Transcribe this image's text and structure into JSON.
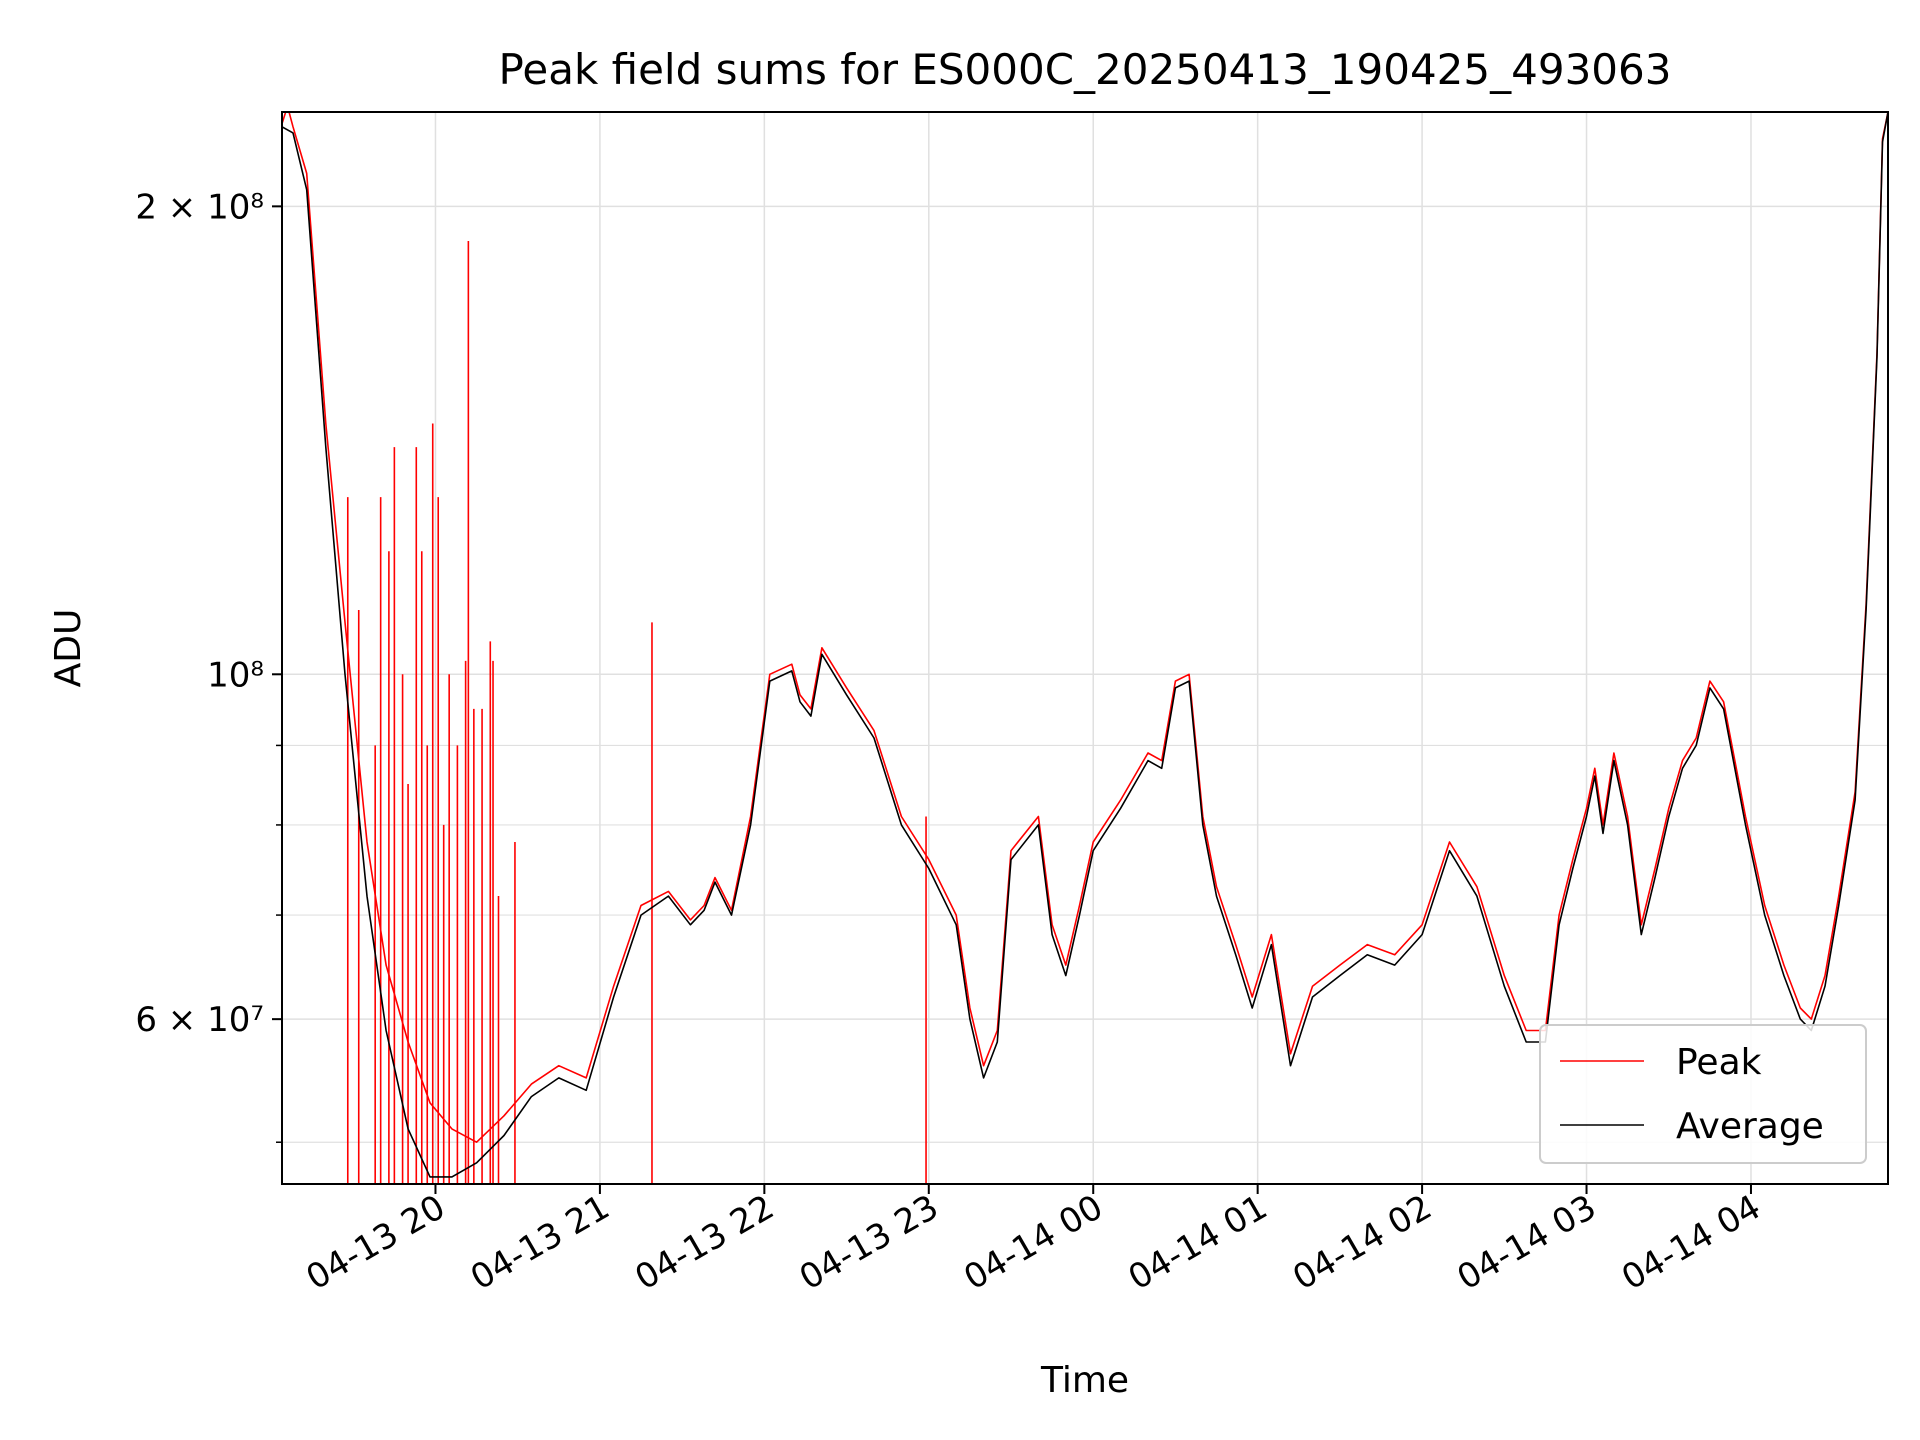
{
  "chart_data": {
    "type": "line",
    "title": "Peak field sums for ES000C_20250413_190425_493063",
    "xlabel": "Time",
    "ylabel": "ADU",
    "yscale": "log",
    "grid": true,
    "legend_position": "lower-right",
    "xlim": [
      "2025-04-13 19:04",
      "2025-04-14 04:50"
    ],
    "ylim": [
      47000000,
      230000000
    ],
    "x_ticks": [
      {
        "t": "2025-04-13 20:00",
        "label": "04-13 20"
      },
      {
        "t": "2025-04-13 21:00",
        "label": "04-13 21"
      },
      {
        "t": "2025-04-13 22:00",
        "label": "04-13 22"
      },
      {
        "t": "2025-04-13 23:00",
        "label": "04-13 23"
      },
      {
        "t": "2025-04-14 00:00",
        "label": "04-14 00"
      },
      {
        "t": "2025-04-14 01:00",
        "label": "04-14 01"
      },
      {
        "t": "2025-04-14 02:00",
        "label": "04-14 02"
      },
      {
        "t": "2025-04-14 03:00",
        "label": "04-14 03"
      },
      {
        "t": "2025-04-14 04:00",
        "label": "04-14 04"
      }
    ],
    "y_major_ticks": [
      {
        "value": 60000000,
        "label": "6 × 10⁷"
      },
      {
        "value": 100000000,
        "label": "10⁸"
      },
      {
        "value": 200000000,
        "label": "2 × 10⁸"
      }
    ],
    "y_minor_ticks": [
      50000000,
      70000000,
      80000000,
      90000000
    ],
    "series": [
      {
        "name": "Average",
        "color": "#000000",
        "points": [
          [
            "2025-04-13 19:04",
            225000000
          ],
          [
            "2025-04-13 19:08",
            223000000
          ],
          [
            "2025-04-13 19:13",
            205000000
          ],
          [
            "2025-04-13 19:20",
            140000000
          ],
          [
            "2025-04-13 19:27",
            100000000
          ],
          [
            "2025-04-13 19:35",
            72000000
          ],
          [
            "2025-04-13 19:42",
            59000000
          ],
          [
            "2025-04-13 19:50",
            51000000
          ],
          [
            "2025-04-13 19:58",
            47500000
          ],
          [
            "2025-04-13 20:06",
            47500000
          ],
          [
            "2025-04-13 20:15",
            48500000
          ],
          [
            "2025-04-13 20:25",
            50500000
          ],
          [
            "2025-04-13 20:35",
            53500000
          ],
          [
            "2025-04-13 20:45",
            55000000
          ],
          [
            "2025-04-13 20:55",
            54000000
          ],
          [
            "2025-04-13 21:05",
            62000000
          ],
          [
            "2025-04-13 21:15",
            70000000
          ],
          [
            "2025-04-13 21:25",
            72000000
          ],
          [
            "2025-04-13 21:33",
            69000000
          ],
          [
            "2025-04-13 21:38",
            70500000
          ],
          [
            "2025-04-13 21:42",
            73500000
          ],
          [
            "2025-04-13 21:48",
            70000000
          ],
          [
            "2025-04-13 21:55",
            80000000
          ],
          [
            "2025-04-13 22:02",
            99000000
          ],
          [
            "2025-04-13 22:10",
            100500000
          ],
          [
            "2025-04-13 22:13",
            96000000
          ],
          [
            "2025-04-13 22:17",
            94000000
          ],
          [
            "2025-04-13 22:21",
            103000000
          ],
          [
            "2025-04-13 22:30",
            97000000
          ],
          [
            "2025-04-13 22:40",
            91000000
          ],
          [
            "2025-04-13 22:50",
            80000000
          ],
          [
            "2025-04-13 23:00",
            75000000
          ],
          [
            "2025-04-13 23:10",
            69000000
          ],
          [
            "2025-04-13 23:15",
            60000000
          ],
          [
            "2025-04-13 23:20",
            55000000
          ],
          [
            "2025-04-13 23:25",
            58000000
          ],
          [
            "2025-04-13 23:30",
            76000000
          ],
          [
            "2025-04-13 23:40",
            80000000
          ],
          [
            "2025-04-13 23:45",
            68000000
          ],
          [
            "2025-04-13 23:50",
            64000000
          ],
          [
            "2025-04-13 23:55",
            70000000
          ],
          [
            "2025-04-14 00:00",
            77000000
          ],
          [
            "2025-04-14 00:10",
            82000000
          ],
          [
            "2025-04-14 00:20",
            88000000
          ],
          [
            "2025-04-14 00:25",
            87000000
          ],
          [
            "2025-04-14 00:30",
            98000000
          ],
          [
            "2025-04-14 00:35",
            99000000
          ],
          [
            "2025-04-14 00:40",
            80000000
          ],
          [
            "2025-04-14 00:45",
            72000000
          ],
          [
            "2025-04-14 00:52",
            66000000
          ],
          [
            "2025-04-14 00:58",
            61000000
          ],
          [
            "2025-04-14 01:05",
            67000000
          ],
          [
            "2025-04-14 01:12",
            56000000
          ],
          [
            "2025-04-14 01:20",
            62000000
          ],
          [
            "2025-04-14 01:30",
            64000000
          ],
          [
            "2025-04-14 01:40",
            66000000
          ],
          [
            "2025-04-14 01:50",
            65000000
          ],
          [
            "2025-04-14 02:00",
            68000000
          ],
          [
            "2025-04-14 02:10",
            77000000
          ],
          [
            "2025-04-14 02:20",
            72000000
          ],
          [
            "2025-04-14 02:30",
            63000000
          ],
          [
            "2025-04-14 02:38",
            58000000
          ],
          [
            "2025-04-14 02:45",
            58000000
          ],
          [
            "2025-04-14 02:50",
            69000000
          ],
          [
            "2025-04-14 02:55",
            75000000
          ],
          [
            "2025-04-14 03:00",
            81000000
          ],
          [
            "2025-04-14 03:03",
            86000000
          ],
          [
            "2025-04-14 03:06",
            79000000
          ],
          [
            "2025-04-14 03:10",
            88000000
          ],
          [
            "2025-04-14 03:15",
            80000000
          ],
          [
            "2025-04-14 03:20",
            68000000
          ],
          [
            "2025-04-14 03:25",
            74000000
          ],
          [
            "2025-04-14 03:30",
            81000000
          ],
          [
            "2025-04-14 03:35",
            87000000
          ],
          [
            "2025-04-14 03:40",
            90000000
          ],
          [
            "2025-04-14 03:45",
            98000000
          ],
          [
            "2025-04-14 03:50",
            95000000
          ],
          [
            "2025-04-14 03:58",
            80000000
          ],
          [
            "2025-04-14 04:05",
            70000000
          ],
          [
            "2025-04-14 04:12",
            64000000
          ],
          [
            "2025-04-14 04:18",
            60000000
          ],
          [
            "2025-04-14 04:22",
            59000000
          ],
          [
            "2025-04-14 04:27",
            63000000
          ],
          [
            "2025-04-14 04:32",
            71000000
          ],
          [
            "2025-04-14 04:38",
            83000000
          ],
          [
            "2025-04-14 04:42",
            110000000
          ],
          [
            "2025-04-14 04:46",
            160000000
          ],
          [
            "2025-04-14 04:48",
            220000000
          ],
          [
            "2025-04-14 04:50",
            230000000
          ]
        ]
      },
      {
        "name": "Peak",
        "color": "#ff0000",
        "points": [
          [
            "2025-04-13 19:04",
            226000000
          ],
          [
            "2025-04-13 19:06",
            232000000
          ],
          [
            "2025-04-13 19:08",
            225000000
          ],
          [
            "2025-04-13 19:13",
            210000000
          ],
          [
            "2025-04-13 19:20",
            145000000
          ],
          [
            "2025-04-13 19:27",
            108000000
          ],
          [
            "2025-04-13 19:35",
            78000000
          ],
          [
            "2025-04-13 19:42",
            65000000
          ],
          [
            "2025-04-13 19:50",
            58000000
          ],
          [
            "2025-04-13 19:58",
            53000000
          ],
          [
            "2025-04-13 20:06",
            51000000
          ],
          [
            "2025-04-13 20:15",
            50000000
          ],
          [
            "2025-04-13 20:25",
            52000000
          ],
          [
            "2025-04-13 20:35",
            54500000
          ],
          [
            "2025-04-13 20:45",
            56000000
          ],
          [
            "2025-04-13 20:55",
            55000000
          ],
          [
            "2025-04-13 21:05",
            63000000
          ],
          [
            "2025-04-13 21:15",
            71000000
          ],
          [
            "2025-04-13 21:25",
            72500000
          ],
          [
            "2025-04-13 21:33",
            69500000
          ],
          [
            "2025-04-13 21:38",
            71000000
          ],
          [
            "2025-04-13 21:42",
            74000000
          ],
          [
            "2025-04-13 21:48",
            70500000
          ],
          [
            "2025-04-13 21:55",
            81000000
          ],
          [
            "2025-04-13 22:02",
            100000000
          ],
          [
            "2025-04-13 22:10",
            101500000
          ],
          [
            "2025-04-13 22:13",
            97000000
          ],
          [
            "2025-04-13 22:17",
            95000000
          ],
          [
            "2025-04-13 22:21",
            104000000
          ],
          [
            "2025-04-13 22:30",
            98000000
          ],
          [
            "2025-04-13 22:40",
            92000000
          ],
          [
            "2025-04-13 22:50",
            81000000
          ],
          [
            "2025-04-13 23:00",
            76000000
          ],
          [
            "2025-04-13 23:10",
            70000000
          ],
          [
            "2025-04-13 23:15",
            61000000
          ],
          [
            "2025-04-13 23:20",
            56000000
          ],
          [
            "2025-04-13 23:25",
            59000000
          ],
          [
            "2025-04-13 23:30",
            77000000
          ],
          [
            "2025-04-13 23:40",
            81000000
          ],
          [
            "2025-04-13 23:45",
            69000000
          ],
          [
            "2025-04-13 23:50",
            65000000
          ],
          [
            "2025-04-13 23:55",
            71000000
          ],
          [
            "2025-04-14 00:00",
            78000000
          ],
          [
            "2025-04-14 00:10",
            83000000
          ],
          [
            "2025-04-14 00:20",
            89000000
          ],
          [
            "2025-04-14 00:25",
            88000000
          ],
          [
            "2025-04-14 00:30",
            99000000
          ],
          [
            "2025-04-14 00:35",
            100000000
          ],
          [
            "2025-04-14 00:40",
            81000000
          ],
          [
            "2025-04-14 00:45",
            73000000
          ],
          [
            "2025-04-14 00:52",
            67000000
          ],
          [
            "2025-04-14 00:58",
            62000000
          ],
          [
            "2025-04-14 01:05",
            68000000
          ],
          [
            "2025-04-14 01:12",
            57000000
          ],
          [
            "2025-04-14 01:20",
            63000000
          ],
          [
            "2025-04-14 01:30",
            65000000
          ],
          [
            "2025-04-14 01:40",
            67000000
          ],
          [
            "2025-04-14 01:50",
            66000000
          ],
          [
            "2025-04-14 02:00",
            69000000
          ],
          [
            "2025-04-14 02:10",
            78000000
          ],
          [
            "2025-04-14 02:20",
            73000000
          ],
          [
            "2025-04-14 02:30",
            64000000
          ],
          [
            "2025-04-14 02:38",
            59000000
          ],
          [
            "2025-04-14 02:45",
            59000000
          ],
          [
            "2025-04-14 02:50",
            70000000
          ],
          [
            "2025-04-14 02:55",
            76000000
          ],
          [
            "2025-04-14 03:00",
            82000000
          ],
          [
            "2025-04-14 03:03",
            87000000
          ],
          [
            "2025-04-14 03:06",
            80000000
          ],
          [
            "2025-04-14 03:10",
            89000000
          ],
          [
            "2025-04-14 03:15",
            81000000
          ],
          [
            "2025-04-14 03:20",
            69000000
          ],
          [
            "2025-04-14 03:25",
            75000000
          ],
          [
            "2025-04-14 03:30",
            82000000
          ],
          [
            "2025-04-14 03:35",
            88000000
          ],
          [
            "2025-04-14 03:40",
            91000000
          ],
          [
            "2025-04-14 03:45",
            99000000
          ],
          [
            "2025-04-14 03:50",
            96000000
          ],
          [
            "2025-04-14 03:58",
            81000000
          ],
          [
            "2025-04-14 04:05",
            71000000
          ],
          [
            "2025-04-14 04:12",
            65000000
          ],
          [
            "2025-04-14 04:18",
            61000000
          ],
          [
            "2025-04-14 04:22",
            60000000
          ],
          [
            "2025-04-14 04:27",
            64000000
          ],
          [
            "2025-04-14 04:32",
            72000000
          ],
          [
            "2025-04-14 04:38",
            84000000
          ],
          [
            "2025-04-14 04:42",
            111000000
          ],
          [
            "2025-04-14 04:46",
            161000000
          ],
          [
            "2025-04-14 04:48",
            221000000
          ],
          [
            "2025-04-14 04:50",
            230000000
          ]
        ],
        "spikes": [
          [
            "2025-04-13 19:28",
            130000000
          ],
          [
            "2025-04-13 19:32",
            110000000
          ],
          [
            "2025-04-13 19:38",
            90000000
          ],
          [
            "2025-04-13 19:40",
            130000000
          ],
          [
            "2025-04-13 19:43",
            120000000
          ],
          [
            "2025-04-13 19:45",
            140000000
          ],
          [
            "2025-04-13 19:48",
            100000000
          ],
          [
            "2025-04-13 19:50",
            85000000
          ],
          [
            "2025-04-13 19:53",
            140000000
          ],
          [
            "2025-04-13 19:55",
            120000000
          ],
          [
            "2025-04-13 19:57",
            90000000
          ],
          [
            "2025-04-13 19:59",
            145000000
          ],
          [
            "2025-04-13 20:01",
            130000000
          ],
          [
            "2025-04-13 20:03",
            80000000
          ],
          [
            "2025-04-13 20:05",
            100000000
          ],
          [
            "2025-04-13 20:08",
            90000000
          ],
          [
            "2025-04-13 20:11",
            102000000
          ],
          [
            "2025-04-13 20:12",
            190000000
          ],
          [
            "2025-04-13 20:14",
            95000000
          ],
          [
            "2025-04-13 20:17",
            95000000
          ],
          [
            "2025-04-13 20:20",
            105000000
          ],
          [
            "2025-04-13 20:21",
            102000000
          ],
          [
            "2025-04-13 20:23",
            72000000
          ],
          [
            "2025-04-13 20:29",
            78000000
          ],
          [
            "2025-04-13 21:19",
            108000000
          ],
          [
            "2025-04-13 22:59",
            81000000
          ]
        ]
      }
    ]
  }
}
